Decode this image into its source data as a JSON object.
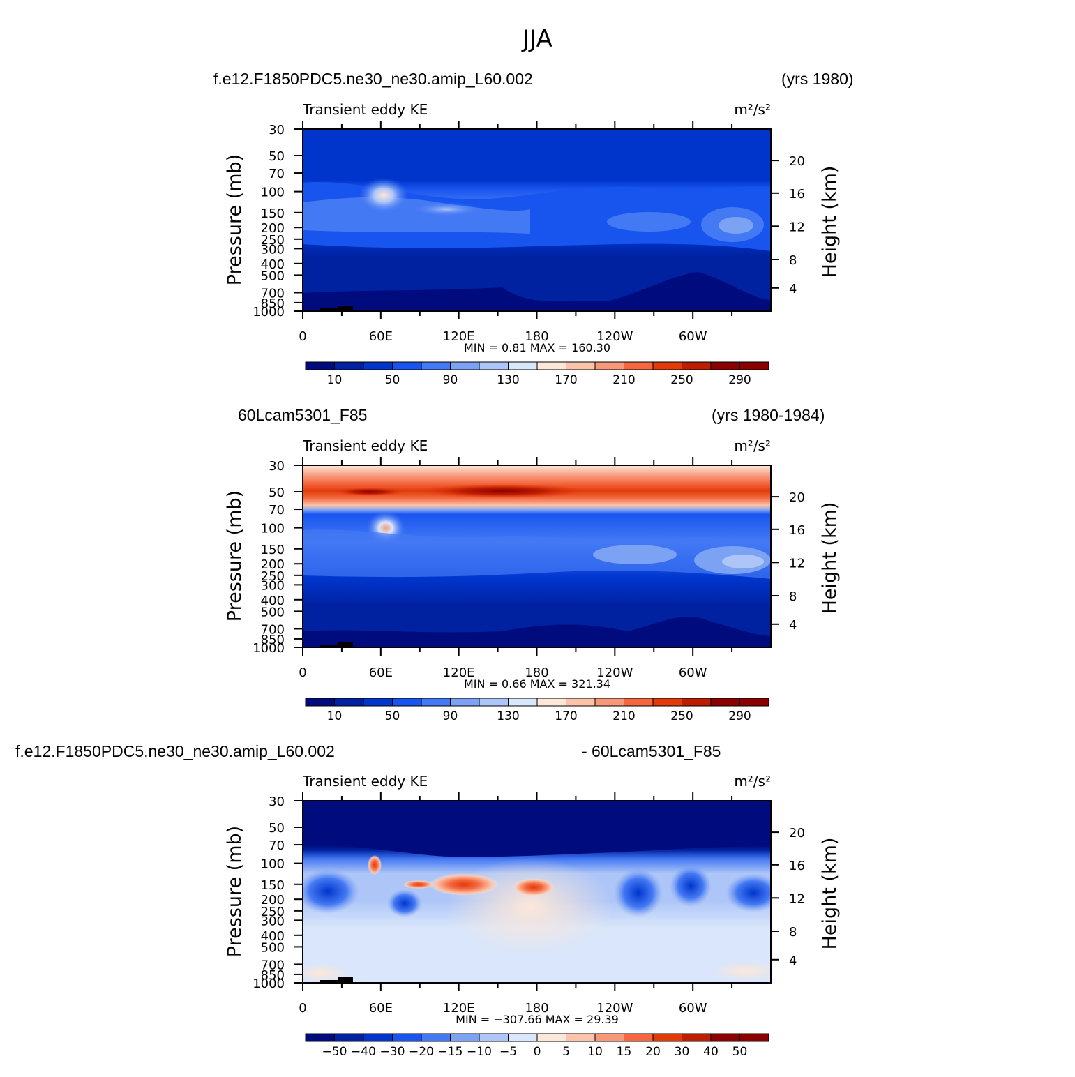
{
  "page_title": "JJA",
  "colors": {
    "blue_red_13": [
      "#000c7d",
      "#0021a0",
      "#0035cc",
      "#1855ef",
      "#4479f4",
      "#7ca2f3",
      "#aec6f7",
      "#d9e6fb",
      "#fde7d8",
      "#fbc4aa",
      "#f79878",
      "#f4673f",
      "#e23b0a",
      "#bd1d00",
      "#8b0000"
    ],
    "diff_blue_red": [
      "#000c7d",
      "#0021a0",
      "#0035cc",
      "#1855ef",
      "#4479f4",
      "#7ca2f3",
      "#aec6f7",
      "#d9e6fb",
      "#fde7d8",
      "#fbc4aa",
      "#f79878",
      "#f4673f",
      "#e23b0a",
      "#bd1d00",
      "#8b0000"
    ]
  },
  "panels": [
    {
      "case_left": "f.e12.F1850PDC5.ne30_ne30.amip_L60.002",
      "case_right": "(yrs 1980)",
      "variable": "Transient eddy KE",
      "units": "m²/s²",
      "min_max": "MIN =    0.81   MAX =  160.30",
      "colorbar_labels": [
        "10",
        "50",
        "90",
        "130",
        "170",
        "210",
        "250",
        "290"
      ]
    },
    {
      "case_left": "60Lcam5301_F85",
      "case_right": "(yrs 1980-1984)",
      "variable": "Transient eddy KE",
      "units": "m²/s²",
      "min_max": "MIN =    0.66   MAX =  321.34",
      "colorbar_labels": [
        "10",
        "50",
        "90",
        "130",
        "170",
        "210",
        "250",
        "290"
      ]
    },
    {
      "case_left": "f.e12.F1850PDC5.ne30_ne30.amip_L60.002",
      "case_right": "- 60Lcam5301_F85",
      "variable": "Transient eddy KE",
      "units": "m²/s²",
      "min_max": "MIN = −307.66   MAX =   29.39",
      "colorbar_labels": [
        "−50",
        "−40",
        "−30",
        "−20",
        "−15",
        "−10",
        "−5",
        "0",
        "5",
        "10",
        "15",
        "20",
        "30",
        "40",
        "50"
      ]
    }
  ],
  "axes": {
    "ylabel_left": "Pressure (mb)",
    "ylabel_right": "Height (km)",
    "pressure_ticks": [
      "30",
      "50",
      "70",
      "100",
      "150",
      "200",
      "250",
      "300",
      "400",
      "500",
      "700",
      "850",
      "1000"
    ],
    "height_ticks": [
      "20",
      "16",
      "12",
      "8",
      "4"
    ],
    "lon_ticks": [
      "0",
      "60E",
      "120E",
      "180",
      "120W",
      "60W"
    ]
  },
  "chart_data": [
    {
      "type": "heatmap",
      "title": "Transient eddy KE",
      "xlabel": "",
      "ylabel": "Pressure (mb)",
      "ylabel_right": "Height (km)",
      "x_ticks": [
        "0",
        "60E",
        "120E",
        "180",
        "120W",
        "60W"
      ],
      "y_ticks": [
        "30",
        "50",
        "70",
        "100",
        "150",
        "200",
        "250",
        "300",
        "400",
        "500",
        "700",
        "850",
        "1000"
      ],
      "levels": [
        10,
        30,
        50,
        70,
        90,
        110,
        130,
        150,
        170,
        190,
        210,
        230,
        250,
        270,
        290
      ],
      "min": 0.81,
      "max": 160.3,
      "description_values": {
        "upper_jet_peak": 150,
        "tropopause_band": 70,
        "lower_trop": 20
      }
    },
    {
      "type": "heatmap",
      "title": "Transient eddy KE",
      "xlabel": "",
      "ylabel": "Pressure (mb)",
      "ylabel_right": "Height (km)",
      "x_ticks": [
        "0",
        "60E",
        "120E",
        "180",
        "120W",
        "60W"
      ],
      "y_ticks": [
        "30",
        "50",
        "70",
        "100",
        "150",
        "200",
        "250",
        "300",
        "400",
        "500",
        "700",
        "850",
        "1000"
      ],
      "levels": [
        10,
        30,
        50,
        70,
        90,
        110,
        130,
        150,
        170,
        190,
        210,
        230,
        250,
        270,
        290
      ],
      "min": 0.66,
      "max": 321.34
    },
    {
      "type": "heatmap",
      "title": "Transient eddy KE",
      "xlabel": "",
      "ylabel": "Pressure (mb)",
      "ylabel_right": "Height (km)",
      "x_ticks": [
        "0",
        "60E",
        "120E",
        "180",
        "120W",
        "60W"
      ],
      "y_ticks": [
        "30",
        "50",
        "70",
        "100",
        "150",
        "200",
        "250",
        "300",
        "400",
        "500",
        "700",
        "850",
        "1000"
      ],
      "levels": [
        -50,
        -40,
        -30,
        -20,
        -15,
        -10,
        -5,
        0,
        5,
        10,
        15,
        20,
        30,
        40,
        50
      ],
      "min": -307.66,
      "max": 29.39
    }
  ]
}
